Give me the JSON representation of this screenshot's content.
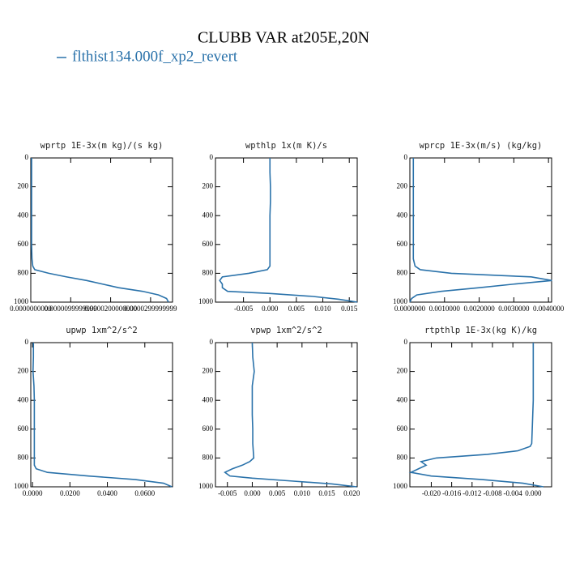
{
  "title": "CLUBB VAR at205E,20N",
  "legend": {
    "name": "flthist134.000f_xp2_revert",
    "color": "#2a72aa"
  },
  "chart_data": [
    {
      "type": "line",
      "title": "wprtp  1E-3x(m kg)/(s kg)",
      "color": "#2a72aa",
      "y": [
        0,
        100,
        200,
        300,
        400,
        500,
        600,
        700,
        750,
        775,
        800,
        825,
        850,
        875,
        900,
        925,
        950,
        975,
        1000
      ],
      "values": [
        2e-07,
        2e-07,
        2e-07,
        2e-07,
        2e-07,
        2e-07,
        2e-07,
        3e-07,
        5e-07,
        1e-06,
        4.5e-06,
        9e-06,
        1.4e-05,
        1.8e-05,
        2.2e-05,
        2.8e-05,
        3.2e-05,
        3.4e-05,
        3.45e-05
      ],
      "xlim": [
        0,
        3.55e-05
      ],
      "xticks": [
        {
          "value": 0,
          "label": "0.0000000000"
        },
        {
          "value": 1e-05,
          "label": "0.0000099999999"
        },
        {
          "value": 2e-05,
          "label": "0.0000200000000"
        },
        {
          "value": 3e-05,
          "label": "0.0000299999999"
        }
      ],
      "ylim": [
        1000,
        0
      ],
      "yticks": [
        0,
        200,
        400,
        600,
        800,
        1000
      ]
    },
    {
      "type": "line",
      "title": "wpthlp  1x(m K)/s",
      "color": "#2a72aa",
      "y": [
        0,
        100,
        200,
        300,
        400,
        500,
        600,
        700,
        750,
        775,
        800,
        825,
        850,
        875,
        900,
        925,
        940,
        960,
        980,
        1000
      ],
      "values": [
        0.0,
        0.0,
        0.0001,
        0.0001,
        0.0,
        0.0,
        0.0,
        0.0,
        0.0,
        -0.0005,
        -0.004,
        -0.009,
        -0.0095,
        -0.009,
        -0.009,
        -0.008,
        0.0,
        0.008,
        0.013,
        0.0165
      ],
      "xlim": [
        -0.0103,
        0.0165
      ],
      "xticks": [
        {
          "value": -0.005,
          "label": "-0.005"
        },
        {
          "value": 0,
          "label": "0.000"
        },
        {
          "value": 0.005,
          "label": "0.005"
        },
        {
          "value": 0.01,
          "label": "0.010"
        },
        {
          "value": 0.015,
          "label": "0.015"
        }
      ],
      "ylim": [
        1000,
        0
      ],
      "yticks": [
        0,
        200,
        400,
        600,
        800,
        1000
      ]
    },
    {
      "type": "line",
      "title": "wprcp  1E-3x(m/s) (kg/kg)",
      "color": "#2a72aa",
      "y": [
        0,
        100,
        200,
        300,
        400,
        500,
        600,
        700,
        750,
        775,
        800,
        825,
        850,
        875,
        900,
        925,
        950,
        975,
        1000
      ],
      "values": [
        0.0001,
        0.0001,
        0.0001,
        0.0001,
        0.0001,
        0.0001,
        0.0001,
        0.0001,
        0.00015,
        0.0003,
        0.0012,
        0.0035,
        0.0041,
        0.003,
        0.002,
        0.0009,
        0.0002,
        5e-05,
        0.0
      ],
      "xlim": [
        0,
        0.00409
      ],
      "xticks": [
        {
          "value": 0,
          "label": "0.0000000"
        },
        {
          "value": 0.001,
          "label": "0.0010000"
        },
        {
          "value": 0.002,
          "label": "0.0020000"
        },
        {
          "value": 0.003,
          "label": "0.0030000"
        },
        {
          "value": 0.004,
          "label": "0.0040000"
        }
      ],
      "ylim": [
        1000,
        0
      ],
      "yticks": [
        0,
        200,
        400,
        600,
        800,
        1000
      ]
    },
    {
      "type": "line",
      "title": "upwp  1xm^2/s^2",
      "color": "#2a72aa",
      "y": [
        0,
        100,
        200,
        300,
        400,
        500,
        600,
        700,
        800,
        850,
        875,
        900,
        925,
        950,
        975,
        1000
      ],
      "values": [
        0.0005,
        0.0005,
        0.0003,
        0.0008,
        0.001,
        0.001,
        0.001,
        0.001,
        0.001,
        0.001,
        0.002,
        0.008,
        0.03,
        0.055,
        0.07,
        0.0745
      ],
      "xlim": [
        -0.0009,
        0.0748
      ],
      "xticks": [
        {
          "value": 0,
          "label": "0.0000"
        },
        {
          "value": 0.02,
          "label": "0.0200"
        },
        {
          "value": 0.04,
          "label": "0.0400"
        },
        {
          "value": 0.06,
          "label": "0.0600"
        }
      ],
      "ylim": [
        1000,
        0
      ],
      "yticks": [
        0,
        200,
        400,
        600,
        800,
        1000
      ]
    },
    {
      "type": "line",
      "title": "vpwp  1xm^2/s^2",
      "color": "#2a72aa",
      "y": [
        0,
        100,
        200,
        300,
        400,
        500,
        600,
        700,
        800,
        825,
        850,
        875,
        900,
        925,
        940,
        960,
        980,
        1000
      ],
      "values": [
        0.0,
        0.0001,
        0.0004,
        0.0,
        0.0,
        0.0,
        0.0001,
        0.0001,
        0.0003,
        -0.0005,
        -0.002,
        -0.004,
        -0.0055,
        -0.0045,
        0.0,
        0.008,
        0.016,
        0.021
      ],
      "xlim": [
        -0.0074,
        0.0211
      ],
      "xticks": [
        {
          "value": -0.005,
          "label": "-0.005"
        },
        {
          "value": 0,
          "label": "0.000"
        },
        {
          "value": 0.005,
          "label": "0.005"
        },
        {
          "value": 0.01,
          "label": "0.010"
        },
        {
          "value": 0.015,
          "label": "0.015"
        },
        {
          "value": 0.02,
          "label": "0.020"
        }
      ],
      "ylim": [
        1000,
        0
      ],
      "yticks": [
        0,
        200,
        400,
        600,
        800,
        1000
      ]
    },
    {
      "type": "line",
      "title": "rtpthlp  1E-3x(kg K)/kg",
      "color": "#2a72aa",
      "y": [
        0,
        100,
        200,
        300,
        400,
        500,
        600,
        700,
        720,
        750,
        775,
        800,
        825,
        850,
        875,
        900,
        925,
        950,
        975,
        1000
      ],
      "values": [
        0.0,
        0.0,
        0.0,
        0.0,
        0.0,
        -0.0001,
        -0.0002,
        -0.0003,
        -0.0006,
        -0.003,
        -0.009,
        -0.019,
        -0.022,
        -0.021,
        -0.0225,
        -0.024,
        -0.02,
        -0.01,
        -0.002,
        0.002
      ],
      "xlim": [
        -0.0242,
        0.0036
      ],
      "xticks": [
        {
          "value": -0.02,
          "label": "-0.020"
        },
        {
          "value": -0.016,
          "label": "-0.016"
        },
        {
          "value": -0.012,
          "label": "-0.012"
        },
        {
          "value": -0.008,
          "label": "-0.008"
        },
        {
          "value": -0.004,
          "label": "-0.004"
        },
        {
          "value": 0,
          "label": "0.000"
        }
      ],
      "ylim": [
        1000,
        0
      ],
      "yticks": [
        0,
        200,
        400,
        600,
        800,
        1000
      ]
    }
  ]
}
